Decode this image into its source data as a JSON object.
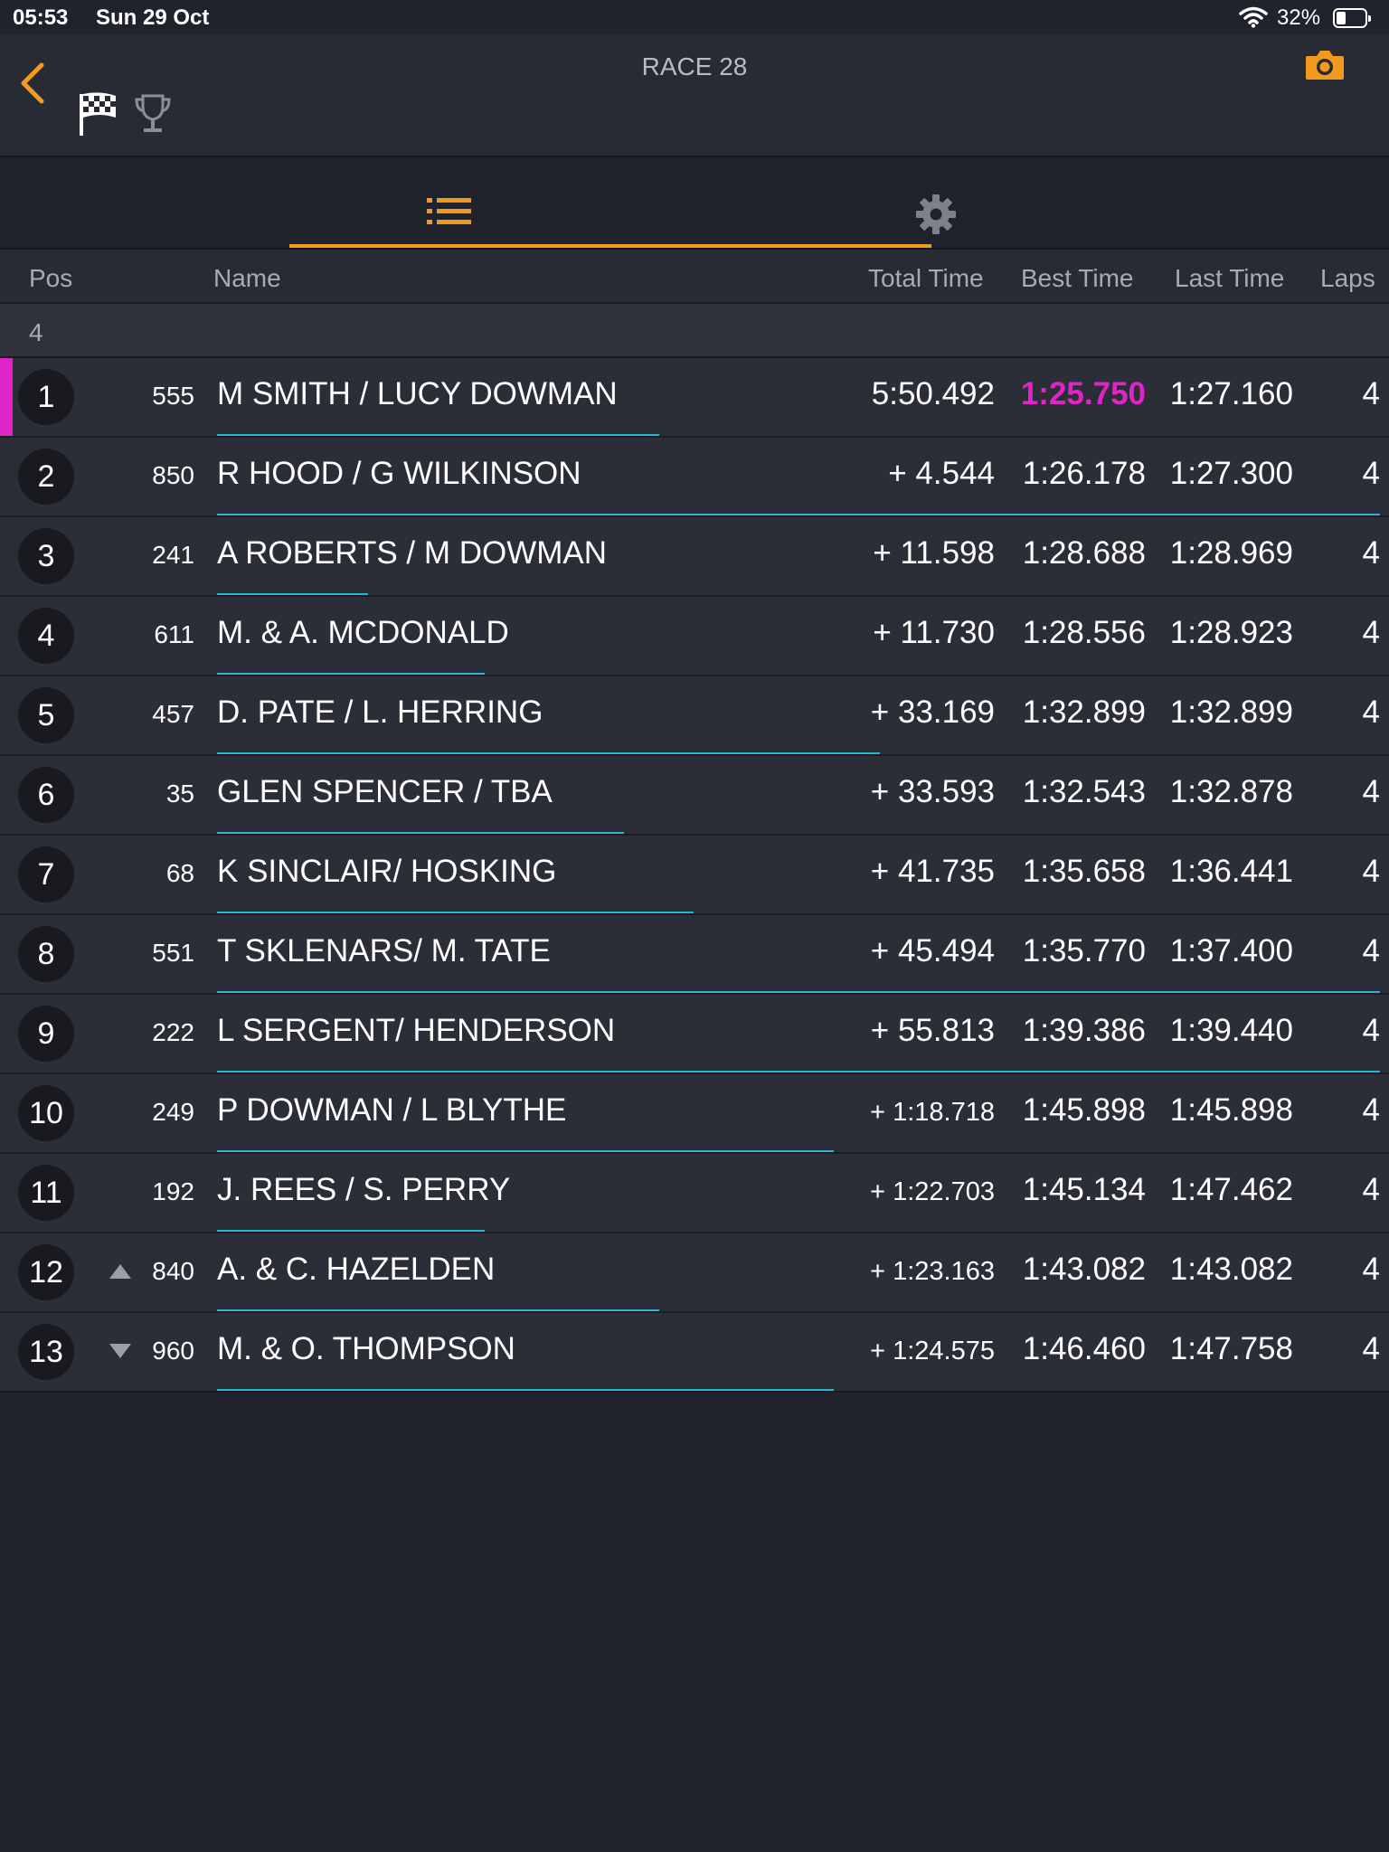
{
  "status_bar": {
    "time": "05:53",
    "date": "Sun 29 Oct",
    "battery_percent": "32%",
    "battery_level": 0.32
  },
  "header": {
    "title": "RACE 28"
  },
  "icons": {
    "back": "chevron-left-icon",
    "camera": "camera-icon",
    "flag": "checkered-flag-icon",
    "trophy": "trophy-icon",
    "list": "list-icon",
    "settings": "gear-icon"
  },
  "colors": {
    "accent": "#f39a1e",
    "fastest": "#e024c8",
    "progress": "#25b6cf",
    "background": "#20232c"
  },
  "columns": {
    "pos": "Pos",
    "name": "Name",
    "total_time": "Total Time",
    "best_time": "Best Time",
    "last_time": "Last Time",
    "laps": "Laps"
  },
  "group_label": "4",
  "rows": [
    {
      "pos": "1",
      "number": "555",
      "name": "M SMITH / LUCY DOWMAN",
      "total": "5:50.492",
      "best": "1:25.750",
      "last": "1:27.160",
      "laps": "4",
      "trend": "",
      "leader": true,
      "fastest": true,
      "progress": 0.38
    },
    {
      "pos": "2",
      "number": "850",
      "name": "R HOOD / G WILKINSON",
      "total": "+ 4.544",
      "best": "1:26.178",
      "last": "1:27.300",
      "laps": "4",
      "trend": "",
      "progress": 1.0
    },
    {
      "pos": "3",
      "number": "241",
      "name": "A ROBERTS / M DOWMAN",
      "total": "+ 11.598",
      "best": "1:28.688",
      "last": "1:28.969",
      "laps": "4",
      "trend": "",
      "progress": 0.13
    },
    {
      "pos": "4",
      "number": "611",
      "name": "M. & A. MCDONALD",
      "total": "+ 11.730",
      "best": "1:28.556",
      "last": "1:28.923",
      "laps": "4",
      "trend": "",
      "progress": 0.23
    },
    {
      "pos": "5",
      "number": "457",
      "name": "D. PATE / L. HERRING",
      "total": "+ 33.169",
      "best": "1:32.899",
      "last": "1:32.899",
      "laps": "4",
      "trend": "",
      "progress": 0.57
    },
    {
      "pos": "6",
      "number": "35",
      "name": "GLEN SPENCER / TBA",
      "total": "+ 33.593",
      "best": "1:32.543",
      "last": "1:32.878",
      "laps": "4",
      "trend": "",
      "progress": 0.35
    },
    {
      "pos": "7",
      "number": "68",
      "name": "K SINCLAIR/ HOSKING",
      "total": "+ 41.735",
      "best": "1:35.658",
      "last": "1:36.441",
      "laps": "4",
      "trend": "",
      "progress": 0.41
    },
    {
      "pos": "8",
      "number": "551",
      "name": "T SKLENARS/ M. TATE",
      "total": "+ 45.494",
      "best": "1:35.770",
      "last": "1:37.400",
      "laps": "4",
      "trend": "",
      "progress": 1.0
    },
    {
      "pos": "9",
      "number": "222",
      "name": "L SERGENT/ HENDERSON",
      "total": "+ 55.813",
      "best": "1:39.386",
      "last": "1:39.440",
      "laps": "4",
      "trend": "",
      "progress": 1.0
    },
    {
      "pos": "10",
      "number": "249",
      "name": "P DOWMAN / L BLYTHE",
      "total": "+ 1:18.718",
      "best": "1:45.898",
      "last": "1:45.898",
      "laps": "4",
      "trend": "",
      "progress": 0.53
    },
    {
      "pos": "11",
      "number": "192",
      "name": "J. REES / S. PERRY",
      "total": "+ 1:22.703",
      "best": "1:45.134",
      "last": "1:47.462",
      "laps": "4",
      "trend": "",
      "progress": 0.23
    },
    {
      "pos": "12",
      "number": "840",
      "name": "A. & C. HAZELDEN",
      "total": "+ 1:23.163",
      "best": "1:43.082",
      "last": "1:43.082",
      "laps": "4",
      "trend": "up",
      "progress": 0.38
    },
    {
      "pos": "13",
      "number": "960",
      "name": "M. & O. THOMPSON",
      "total": "+ 1:24.575",
      "best": "1:46.460",
      "last": "1:47.758",
      "laps": "4",
      "trend": "down",
      "progress": 0.53
    }
  ]
}
